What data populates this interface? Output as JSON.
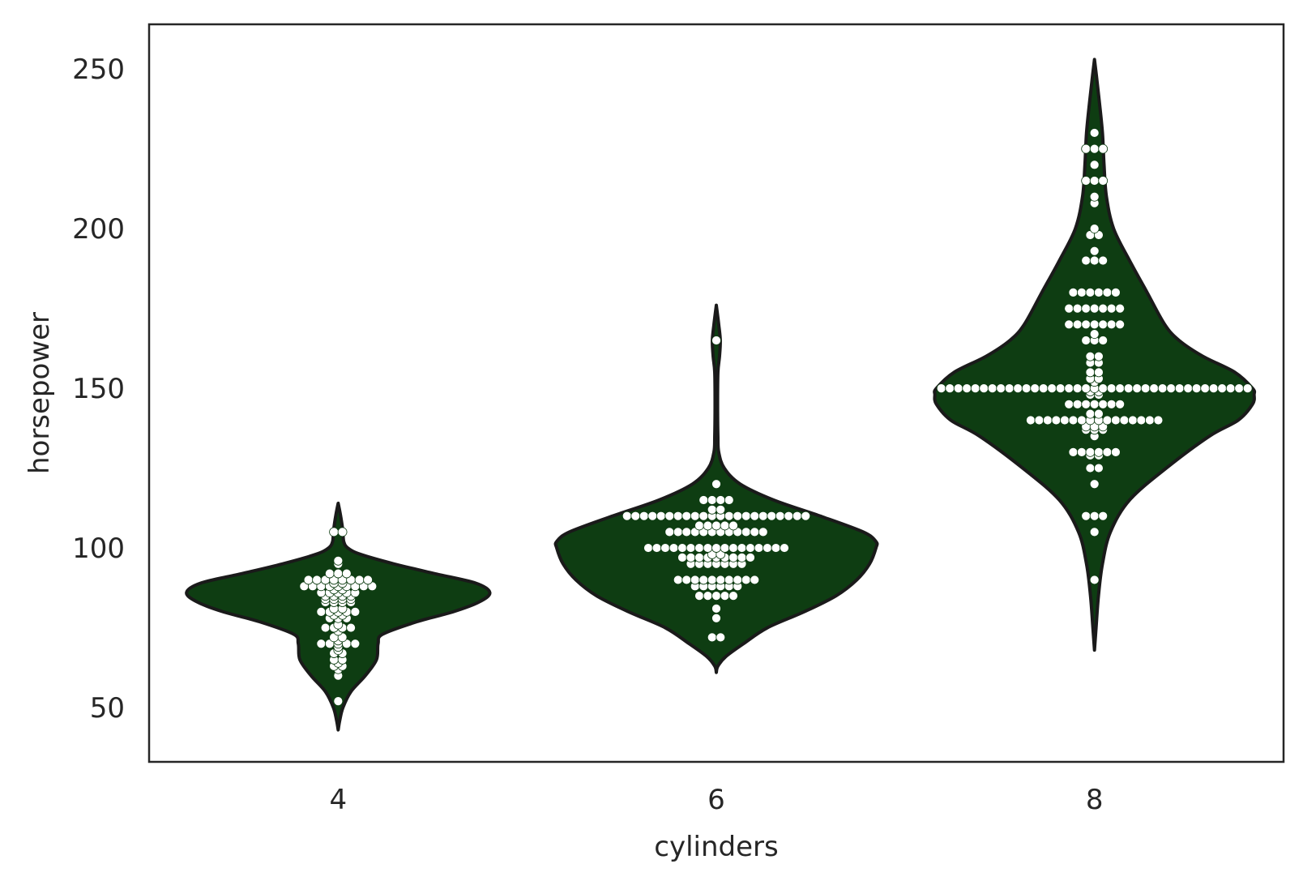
{
  "chart_data": {
    "type": "violin",
    "xlabel": "cylinders",
    "ylabel": "horsepower",
    "categories": [
      "4",
      "6",
      "8"
    ],
    "yticks": [
      50,
      100,
      150,
      200,
      250
    ],
    "ylim": [
      33,
      264
    ],
    "grid": false,
    "colors": {
      "violin_fill": "#0e3d12",
      "violin_edge": "#1a1a1a",
      "points": "#ffffff",
      "axes": "#262626"
    },
    "violins": [
      {
        "category": "4",
        "min": 43,
        "max": 114,
        "profile": [
          [
            43,
            0.0
          ],
          [
            46,
            0.01
          ],
          [
            50,
            0.03
          ],
          [
            55,
            0.08
          ],
          [
            60,
            0.17
          ],
          [
            65,
            0.24
          ],
          [
            70,
            0.25
          ],
          [
            73,
            0.28
          ],
          [
            77,
            0.5
          ],
          [
            80,
            0.72
          ],
          [
            83,
            0.88
          ],
          [
            86,
            0.95
          ],
          [
            89,
            0.86
          ],
          [
            92,
            0.6
          ],
          [
            95,
            0.35
          ],
          [
            98,
            0.14
          ],
          [
            100,
            0.06
          ],
          [
            102,
            0.035
          ],
          [
            105,
            0.03
          ],
          [
            108,
            0.022
          ],
          [
            111,
            0.012
          ],
          [
            114,
            0.0
          ]
        ]
      },
      {
        "category": "6",
        "min": 61,
        "max": 176,
        "profile": [
          [
            61,
            0.0
          ],
          [
            63,
            0.01
          ],
          [
            66,
            0.06
          ],
          [
            70,
            0.17
          ],
          [
            75,
            0.32
          ],
          [
            80,
            0.55
          ],
          [
            85,
            0.75
          ],
          [
            90,
            0.88
          ],
          [
            95,
            0.96
          ],
          [
            100,
            1.0
          ],
          [
            102,
            1.0
          ],
          [
            105,
            0.92
          ],
          [
            110,
            0.65
          ],
          [
            115,
            0.36
          ],
          [
            120,
            0.15
          ],
          [
            125,
            0.05
          ],
          [
            130,
            0.015
          ],
          [
            135,
            0.01
          ],
          [
            145,
            0.008
          ],
          [
            155,
            0.01
          ],
          [
            160,
            0.02
          ],
          [
            165,
            0.025
          ],
          [
            170,
            0.015
          ],
          [
            176,
            0.0
          ]
        ]
      },
      {
        "category": "8",
        "min": 68,
        "max": 253,
        "profile": [
          [
            68,
            0.0
          ],
          [
            75,
            0.01
          ],
          [
            85,
            0.025
          ],
          [
            95,
            0.05
          ],
          [
            105,
            0.1
          ],
          [
            115,
            0.22
          ],
          [
            125,
            0.45
          ],
          [
            135,
            0.72
          ],
          [
            140,
            0.9
          ],
          [
            145,
            0.99
          ],
          [
            148,
            1.0
          ],
          [
            150,
            0.99
          ],
          [
            155,
            0.88
          ],
          [
            160,
            0.68
          ],
          [
            165,
            0.53
          ],
          [
            170,
            0.44
          ],
          [
            180,
            0.33
          ],
          [
            190,
            0.22
          ],
          [
            200,
            0.12
          ],
          [
            210,
            0.075
          ],
          [
            220,
            0.06
          ],
          [
            230,
            0.05
          ],
          [
            240,
            0.03
          ],
          [
            248,
            0.012
          ],
          [
            253,
            0.0
          ]
        ]
      }
    ],
    "points": [
      {
        "category": "4",
        "values": [
          52,
          60,
          62,
          63,
          63,
          64,
          65,
          65,
          67,
          67,
          68,
          69,
          70,
          70,
          70,
          70,
          70,
          71,
          72,
          72,
          74,
          75,
          75,
          75,
          75,
          76,
          78,
          78,
          78,
          79,
          79,
          80,
          80,
          80,
          80,
          80,
          81,
          81,
          83,
          83,
          83,
          83,
          84,
          84,
          84,
          84,
          85,
          85,
          85,
          85,
          86,
          86,
          86,
          86,
          86,
          87,
          87,
          88,
          88,
          88,
          88,
          88,
          88,
          88,
          88,
          88,
          89,
          89,
          90,
          90,
          90,
          90,
          90,
          90,
          90,
          90,
          92,
          92,
          92,
          95,
          96,
          105,
          105
        ]
      },
      {
        "category": "6",
        "values": [
          72,
          72,
          78,
          81,
          85,
          85,
          85,
          85,
          85,
          88,
          88,
          88,
          88,
          88,
          88,
          90,
          90,
          90,
          90,
          90,
          90,
          90,
          90,
          90,
          90,
          95,
          95,
          95,
          95,
          95,
          95,
          95,
          97,
          97,
          97,
          97,
          97,
          97,
          97,
          97,
          97,
          98,
          98,
          100,
          100,
          100,
          100,
          100,
          100,
          100,
          100,
          100,
          100,
          100,
          100,
          100,
          100,
          100,
          100,
          100,
          105,
          105,
          105,
          105,
          105,
          105,
          105,
          105,
          105,
          105,
          105,
          105,
          107,
          107,
          107,
          107,
          107,
          110,
          110,
          110,
          110,
          110,
          110,
          110,
          110,
          110,
          110,
          110,
          110,
          110,
          110,
          110,
          110,
          110,
          110,
          110,
          110,
          110,
          110,
          112,
          112,
          115,
          115,
          115,
          115,
          120,
          165
        ]
      },
      {
        "category": "8",
        "values": [
          90,
          105,
          110,
          110,
          110,
          120,
          125,
          125,
          129,
          129,
          130,
          130,
          130,
          130,
          130,
          130,
          135,
          137,
          137,
          137,
          138,
          138,
          138,
          140,
          140,
          140,
          140,
          140,
          140,
          140,
          140,
          140,
          140,
          140,
          140,
          140,
          140,
          140,
          140,
          142,
          142,
          145,
          145,
          145,
          145,
          145,
          145,
          145,
          148,
          148,
          149,
          149,
          150,
          150,
          150,
          150,
          150,
          150,
          150,
          150,
          150,
          150,
          150,
          150,
          150,
          150,
          150,
          150,
          150,
          150,
          150,
          150,
          150,
          150,
          150,
          150,
          150,
          150,
          150,
          150,
          150,
          150,
          150,
          150,
          150,
          150,
          150,
          150,
          150,
          152,
          153,
          153,
          155,
          155,
          158,
          158,
          160,
          160,
          165,
          165,
          165,
          167,
          170,
          170,
          170,
          170,
          170,
          170,
          170,
          175,
          175,
          175,
          175,
          175,
          175,
          175,
          180,
          180,
          180,
          180,
          180,
          180,
          190,
          190,
          190,
          193,
          198,
          198,
          200,
          208,
          210,
          215,
          215,
          215,
          220,
          225,
          225,
          225,
          230
        ]
      }
    ]
  }
}
